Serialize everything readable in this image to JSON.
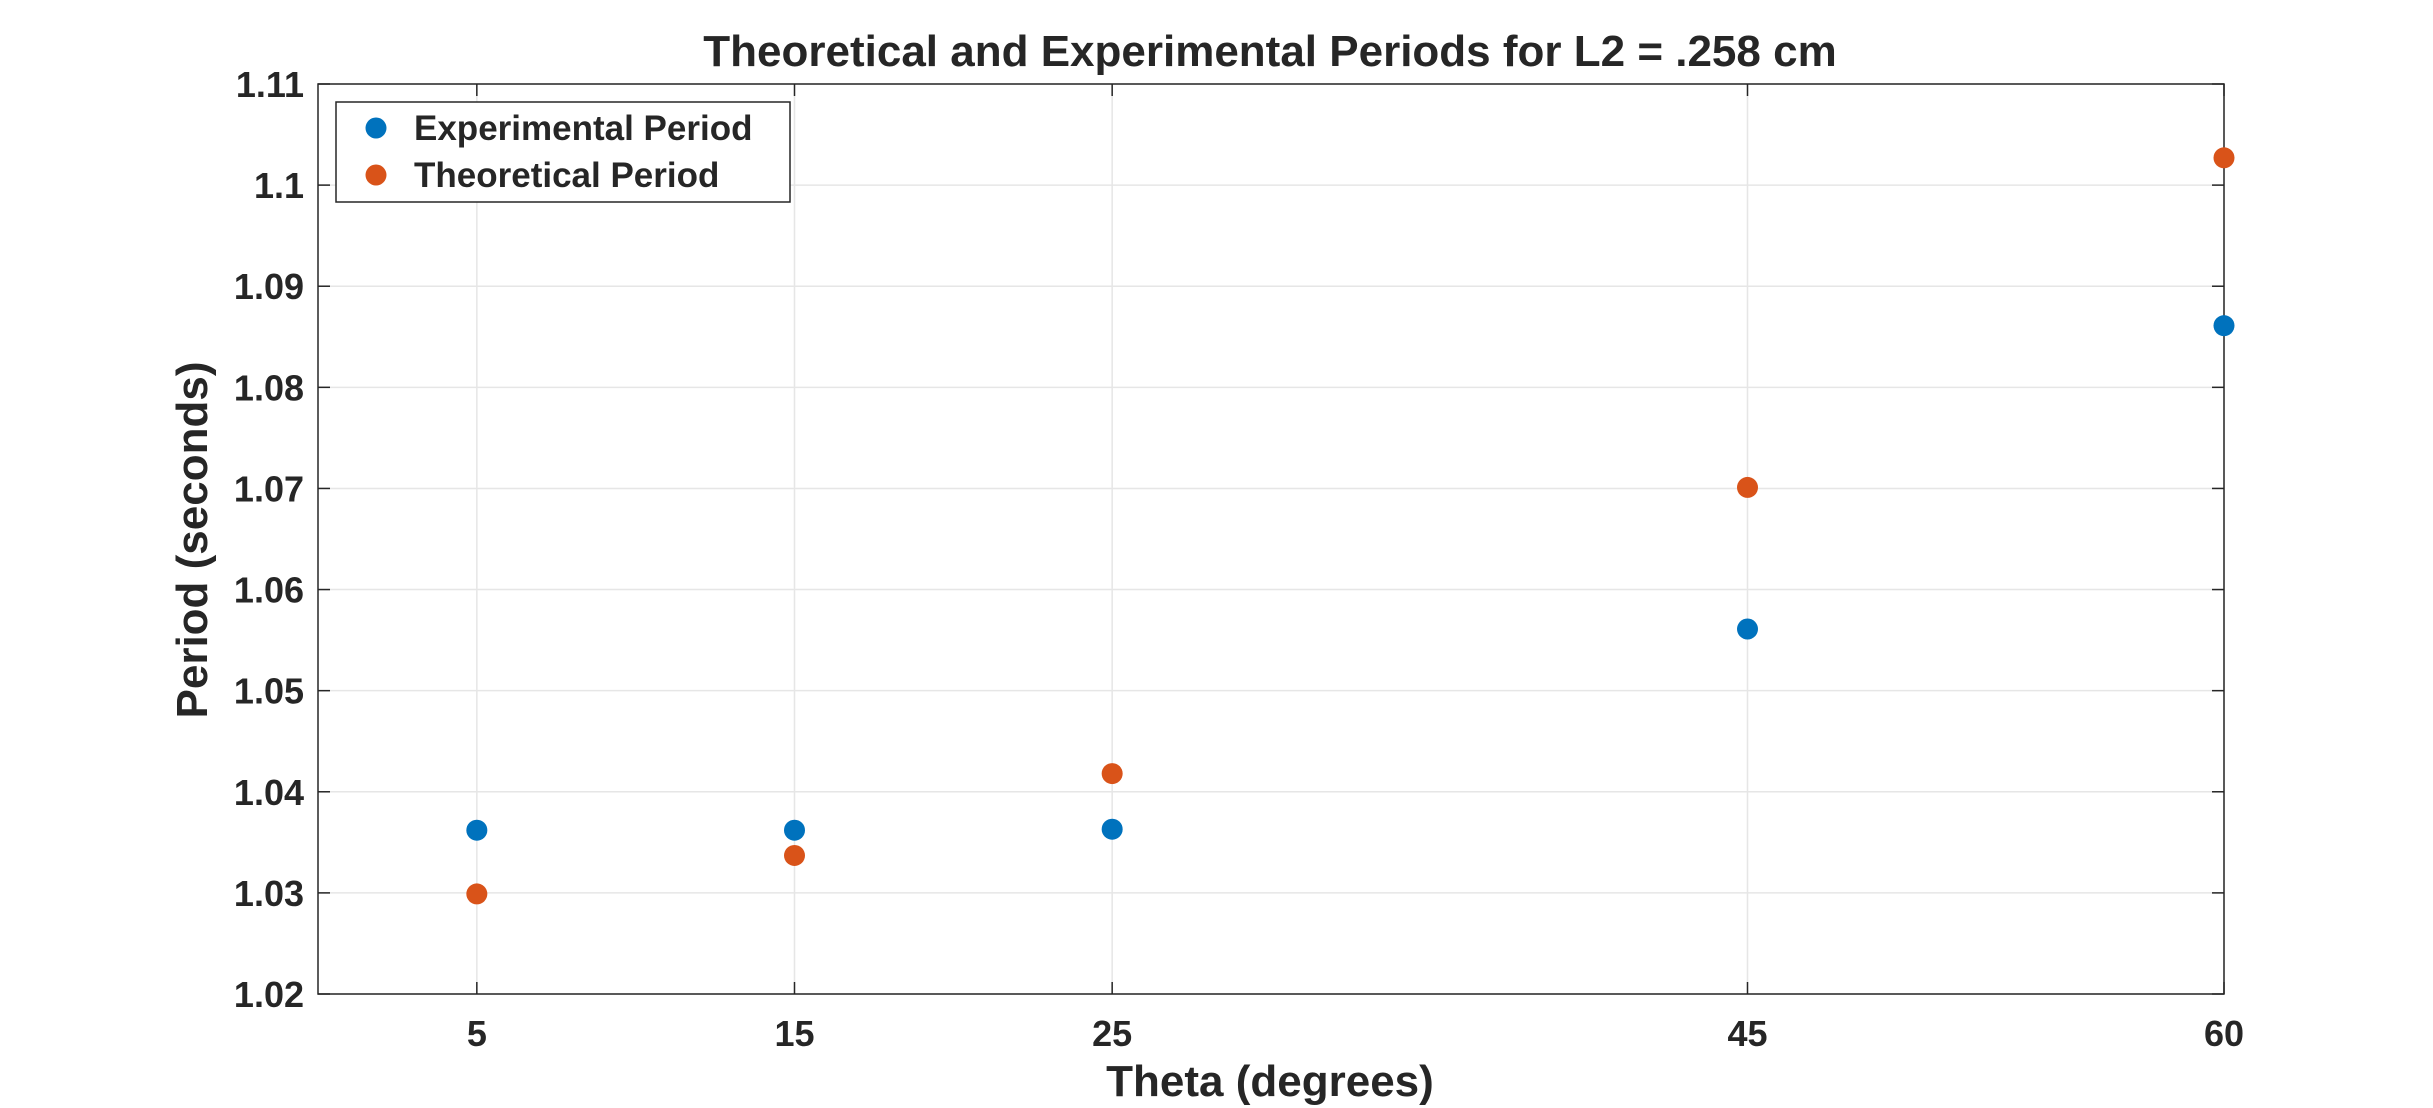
{
  "chart_data": {
    "type": "scatter",
    "title": "Theoretical and Experimental Periods for L2 = .258 cm",
    "xlabel": "Theta (degrees)",
    "ylabel": "Period (seconds)",
    "xlim": [
      0,
      60
    ],
    "ylim": [
      1.02,
      1.11
    ],
    "xticks": [
      5,
      15,
      25,
      45,
      60
    ],
    "xtick_labels": [
      "5",
      "15",
      "25",
      "45",
      "60"
    ],
    "yticks": [
      1.02,
      1.03,
      1.04,
      1.05,
      1.06,
      1.07,
      1.08,
      1.09,
      1.1,
      1.11
    ],
    "ytick_labels": [
      "1.02",
      "1.03",
      "1.04",
      "1.05",
      "1.06",
      "1.07",
      "1.08",
      "1.09",
      "1.1",
      "1.11"
    ],
    "grid": true,
    "legend_position": "top-left",
    "series": [
      {
        "name": "Experimental Period",
        "color": "#0072BD",
        "x": [
          5,
          15,
          25,
          45,
          60
        ],
        "y": [
          1.0362,
          1.0362,
          1.0363,
          1.0561,
          1.0861
        ]
      },
      {
        "name": "Theoretical Period",
        "color": "#D95319",
        "x": [
          5,
          15,
          25,
          45,
          60
        ],
        "y": [
          1.0299,
          1.0337,
          1.0418,
          1.0701,
          1.1027
        ]
      }
    ]
  }
}
